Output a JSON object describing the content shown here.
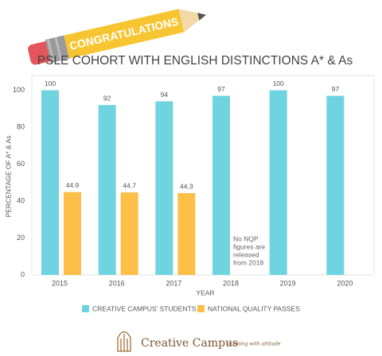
{
  "chart_data": {
    "type": "bar",
    "banner": "CONGRATULATIONS",
    "title": "PSLE COHORT WITH ENGLISH DISTINCTIONS A* & As",
    "x_label": "YEAR",
    "y_label": "PERCENTAGE OF A* & As",
    "categories": [
      "2015",
      "2016",
      "2017",
      "2018",
      "2019",
      "2020"
    ],
    "series": [
      {
        "name": "CREATIVE CAMPUS' STUDENTS",
        "color": "#6fd4e0",
        "values": [
          100,
          92,
          94,
          97,
          100,
          97
        ]
      },
      {
        "name": "NATIONAL QUALITY PASSES",
        "color": "#fcbf47",
        "values": [
          44.9,
          44.7,
          44.3,
          null,
          null,
          null
        ]
      }
    ],
    "ylim": [
      0,
      108
    ],
    "yticks": [
      0,
      20,
      40,
      60,
      80,
      100
    ],
    "grid": false,
    "annotation": [
      "No NQP",
      "figures are",
      "released",
      "from 2018"
    ]
  },
  "logo": {
    "name": "Creative Campus",
    "tagline": "learning with attitude"
  }
}
